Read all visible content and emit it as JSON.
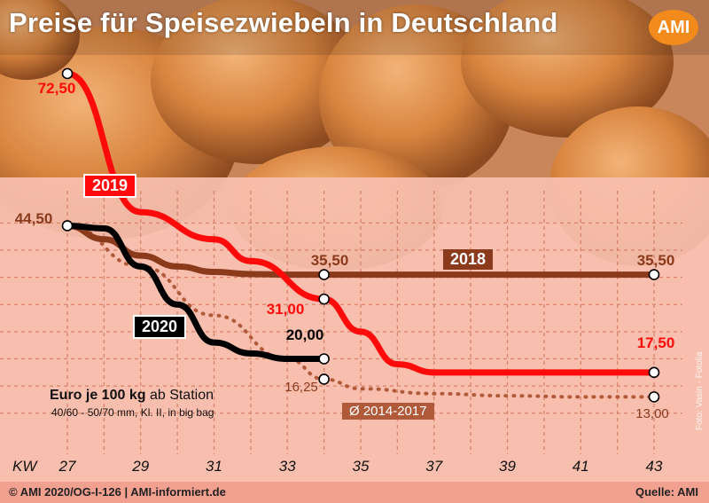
{
  "title": "Preise für Speisezwiebeln in Deutschland",
  "logo": "AMI",
  "footer": {
    "left": "© AMI 2020/OG-I-126 | AMI-informiert.de",
    "right": "Quelle: AMI"
  },
  "photo_credit": "Foto: Vasin - Fotolia",
  "unit_main_bold": "Euro je 100 kg",
  "unit_main_rest": " ab Station",
  "unit_sub": "40/60 - 50/70 mm, Kl. II, in big bag",
  "x_axis_label": "KW",
  "colors": {
    "2019": "#ff0a0a",
    "2018": "#8b3a1c",
    "2020": "#000000",
    "avg": "#b05a3a",
    "background": "#f6b7a6"
  },
  "chart_data": {
    "type": "line",
    "x_ticks": [
      27,
      29,
      31,
      33,
      35,
      37,
      39,
      41,
      43
    ],
    "xlim": [
      27,
      43
    ],
    "ylim": [
      0,
      80
    ],
    "grid": true,
    "series": [
      {
        "name": "2019",
        "x": [
          27,
          29,
          31,
          32,
          34,
          35,
          36,
          37,
          43
        ],
        "y": [
          72.5,
          47.0,
          42.0,
          38.0,
          31.0,
          25.0,
          19.0,
          17.5,
          17.5
        ]
      },
      {
        "name": "2018",
        "x": [
          27,
          28,
          29,
          30,
          31,
          32,
          33,
          34,
          43
        ],
        "y": [
          44.5,
          42.0,
          39.0,
          37.0,
          36.0,
          35.6,
          35.5,
          35.5,
          35.5
        ]
      },
      {
        "name": "2020",
        "x": [
          27,
          28,
          29,
          30,
          31,
          32,
          33,
          34
        ],
        "y": [
          44.5,
          44.0,
          37.0,
          30.0,
          23.0,
          21.0,
          20.0,
          20.0
        ]
      },
      {
        "name": "Ø 2014-2017",
        "x": [
          27,
          29,
          31,
          33,
          34,
          35,
          37,
          39,
          41,
          43
        ],
        "y": [
          44.5,
          37.0,
          28.0,
          20.0,
          16.25,
          14.5,
          13.6,
          13.2,
          13.0,
          13.0
        ]
      }
    ],
    "point_labels": [
      {
        "text": "72,50",
        "series": "2019",
        "x": 27,
        "y": 72.5
      },
      {
        "text": "44,50",
        "series": "2018",
        "x": 27,
        "y": 44.5
      },
      {
        "text": "35,50",
        "series": "2018",
        "x": 34,
        "y": 35.5
      },
      {
        "text": "35,50",
        "series": "2018",
        "x": 43,
        "y": 35.5
      },
      {
        "text": "31,00",
        "series": "2019",
        "x": 34,
        "y": 31.0
      },
      {
        "text": "20,00",
        "series": "2020",
        "x": 34,
        "y": 20.0
      },
      {
        "text": "17,50",
        "series": "2019",
        "x": 43,
        "y": 17.5
      },
      {
        "text": "16,25",
        "series": "Ø 2014-2017",
        "x": 34,
        "y": 16.25
      },
      {
        "text": "13,00",
        "series": "Ø 2014-2017",
        "x": 43,
        "y": 13.0
      }
    ]
  }
}
